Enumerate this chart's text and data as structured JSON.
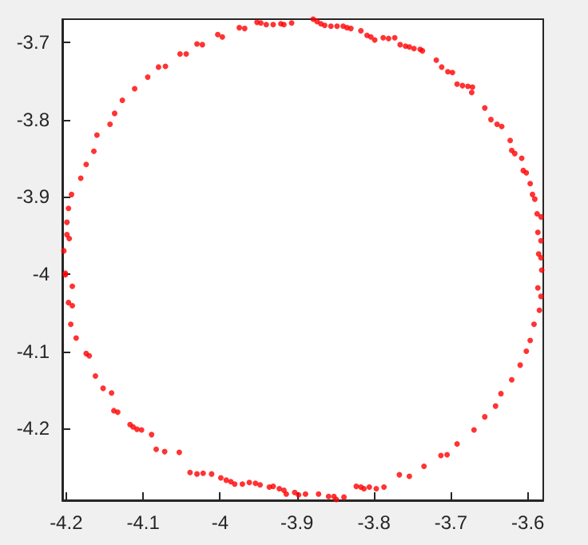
{
  "chart_data": {
    "type": "scatter",
    "marker": "circle",
    "grid": false,
    "xlim": [
      -4.205,
      -3.58
    ],
    "ylim": [
      -4.293,
      -3.67
    ],
    "xticks": [
      -4.2,
      -4.1,
      -4,
      -3.9,
      -3.8,
      -3.7,
      -3.6
    ],
    "yticks": [
      -4.2,
      -4.1,
      -4,
      -3.9,
      -3.8,
      -3.7
    ],
    "series": [
      {
        "color": "#ff0000",
        "x": [
          -4.193,
          -4.197,
          -4.199,
          -4.199,
          -4.196,
          -4.203,
          -4.201,
          -4.181,
          -4.174,
          -4.164,
          -4.16,
          -4.143,
          -4.137,
          -4.127,
          -4.111,
          -4.094,
          -4.08,
          -4.071,
          -4.052,
          -4.044,
          -4.03,
          -4.023,
          -4.003,
          -3.997,
          -3.975,
          -3.968,
          -3.952,
          -3.947,
          -3.94,
          -3.931,
          -3.921,
          -3.917,
          -3.907,
          -3.879,
          -3.874,
          -3.869,
          -3.864,
          -3.856,
          -3.848,
          -3.84,
          -3.835,
          -3.83,
          -3.817,
          -3.809,
          -3.804,
          -3.799,
          -3.788,
          -3.781,
          -3.773,
          -3.766,
          -3.759,
          -3.754,
          -3.748,
          -3.74,
          -3.737,
          -3.719,
          -3.712,
          -3.704,
          -3.698,
          -3.692,
          -3.685,
          -3.678,
          -3.672,
          -3.673,
          -3.656,
          -3.648,
          -3.64,
          -3.634,
          -3.623,
          -3.621,
          -3.617,
          -3.608,
          -3.606,
          -3.602,
          -3.597,
          -3.594,
          -3.591,
          -3.588,
          -3.583,
          -3.587,
          -3.583,
          -3.586,
          -3.583,
          -3.582,
          -3.587,
          -3.583,
          -3.585,
          -3.592,
          -3.597,
          -3.602,
          -3.61,
          -3.621,
          -3.635,
          -3.642,
          -3.656,
          -3.67,
          -3.692,
          -3.705,
          -3.713,
          -3.735,
          -3.754,
          -3.767,
          -3.787,
          -3.797,
          -3.806,
          -3.813,
          -3.817,
          -3.823,
          -3.839,
          -3.849,
          -3.852,
          -3.859,
          -3.872,
          -3.889,
          -3.898,
          -3.903,
          -3.914,
          -3.917,
          -3.923,
          -3.931,
          -3.936,
          -3.948,
          -3.954,
          -3.962,
          -3.971,
          -3.981,
          -3.986,
          -3.992,
          -3.999,
          -4.011,
          -4.022,
          -4.03,
          -4.039,
          -4.053,
          -4.072,
          -4.083,
          -4.089,
          -4.102,
          -4.108,
          -4.113,
          -4.117,
          -4.133,
          -4.138,
          -4.141,
          -4.152,
          -4.162,
          -4.17,
          -4.174,
          -4.187,
          -4.194,
          -4.192,
          -4.197,
          -4.192,
          -4.201
        ],
        "values": [
          -3.897,
          -3.915,
          -3.933,
          -3.949,
          -3.954,
          -3.97,
          -3.999,
          -3.876,
          -3.858,
          -3.841,
          -3.82,
          -3.806,
          -3.792,
          -3.775,
          -3.76,
          -3.745,
          -3.732,
          -3.731,
          -3.715,
          -3.715,
          -3.702,
          -3.703,
          -3.69,
          -3.693,
          -3.681,
          -3.682,
          -3.674,
          -3.675,
          -3.677,
          -3.677,
          -3.676,
          -3.677,
          -3.675,
          -3.67,
          -3.673,
          -3.676,
          -3.678,
          -3.679,
          -3.679,
          -3.679,
          -3.681,
          -3.682,
          -3.685,
          -3.691,
          -3.693,
          -3.697,
          -3.694,
          -3.695,
          -3.694,
          -3.703,
          -3.705,
          -3.706,
          -3.708,
          -3.709,
          -3.711,
          -3.723,
          -3.732,
          -3.738,
          -3.739,
          -3.754,
          -3.756,
          -3.757,
          -3.758,
          -3.765,
          -3.785,
          -3.8,
          -3.806,
          -3.809,
          -3.827,
          -3.84,
          -3.844,
          -3.85,
          -3.866,
          -3.869,
          -3.883,
          -3.897,
          -3.903,
          -3.922,
          -3.926,
          -3.946,
          -3.957,
          -3.974,
          -3.979,
          -3.995,
          -4.018,
          -4.029,
          -4.047,
          -4.065,
          -4.086,
          -4.1,
          -4.118,
          -4.137,
          -4.155,
          -4.171,
          -4.185,
          -4.202,
          -4.22,
          -4.234,
          -4.235,
          -4.249,
          -4.262,
          -4.26,
          -4.276,
          -4.278,
          -4.276,
          -4.278,
          -4.276,
          -4.275,
          -4.289,
          -4.292,
          -4.288,
          -4.288,
          -4.285,
          -4.285,
          -4.286,
          -4.283,
          -4.285,
          -4.28,
          -4.278,
          -4.275,
          -4.276,
          -4.273,
          -4.271,
          -4.27,
          -4.272,
          -4.272,
          -4.269,
          -4.267,
          -4.264,
          -4.259,
          -4.258,
          -4.259,
          -4.257,
          -4.231,
          -4.23,
          -4.227,
          -4.208,
          -4.202,
          -4.201,
          -4.198,
          -4.195,
          -4.179,
          -4.177,
          -4.154,
          -4.148,
          -4.132,
          -4.106,
          -4.103,
          -4.083,
          -4.065,
          -4.041,
          -4.037,
          -4.016,
          -4.001
        ]
      }
    ]
  }
}
